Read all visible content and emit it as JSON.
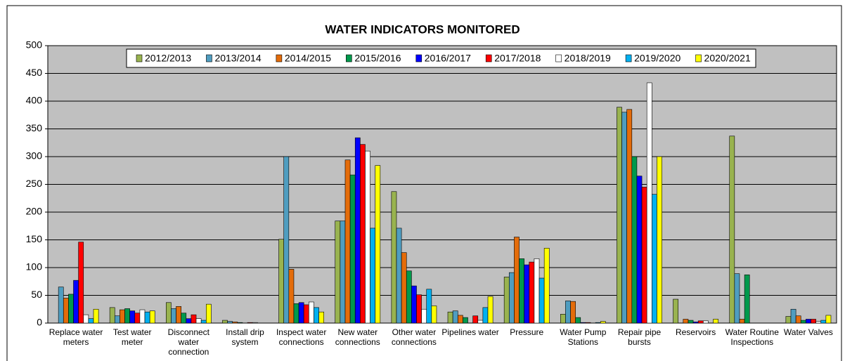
{
  "chart_data": {
    "type": "bar",
    "title": "WATER INDICATORS MONITORED",
    "categories": [
      "Replace water meters",
      "Test water meter",
      "Disconnect water connection",
      "Install drip system",
      "Inspect water connections",
      "New water connections",
      "Other water connections",
      "Pipelines water",
      "Pressure",
      "Water Pump Stations",
      "Repair pipe bursts",
      "Reservoirs",
      "Water Routine Inspections",
      "Water Valves"
    ],
    "series": [
      {
        "name": "2012/2013",
        "color": "#99b34f",
        "values": [
          0,
          28,
          37,
          5,
          151,
          184,
          237,
          20,
          83,
          16,
          389,
          43,
          337,
          12
        ]
      },
      {
        "name": "2013/2014",
        "color": "#4f9dc0",
        "values": [
          65,
          13,
          26,
          3,
          300,
          184,
          171,
          22,
          91,
          40,
          380,
          0,
          89,
          25
        ]
      },
      {
        "name": "2014/2015",
        "color": "#e46c0a",
        "values": [
          45,
          24,
          30,
          2,
          97,
          294,
          127,
          14,
          155,
          39,
          385,
          7,
          7,
          13
        ]
      },
      {
        "name": "2015/2016",
        "color": "#00994c",
        "values": [
          52,
          26,
          18,
          1,
          35,
          267,
          94,
          10,
          116,
          10,
          300,
          5,
          87,
          5
        ]
      },
      {
        "name": "2016/2017",
        "color": "#0000ff",
        "values": [
          77,
          22,
          8,
          0,
          37,
          334,
          67,
          0,
          105,
          1,
          265,
          2,
          0,
          7
        ]
      },
      {
        "name": "2017/2018",
        "color": "#ff0000",
        "values": [
          146,
          18,
          15,
          1,
          33,
          322,
          51,
          13,
          110,
          1,
          245,
          4,
          0,
          7
        ]
      },
      {
        "name": "2018/2019",
        "color": "#ffffff",
        "values": [
          15,
          24,
          8,
          1,
          38,
          310,
          25,
          5,
          116,
          0,
          433,
          4,
          0,
          3
        ]
      },
      {
        "name": "2019/2020",
        "color": "#00b0f0",
        "values": [
          8,
          20,
          5,
          0,
          28,
          171,
          61,
          28,
          81,
          1,
          232,
          0,
          0,
          5
        ]
      },
      {
        "name": "2020/2021",
        "color": "#ffff00",
        "values": [
          25,
          22,
          34,
          0,
          20,
          284,
          31,
          48,
          135,
          3,
          300,
          7,
          0,
          14
        ]
      }
    ],
    "ylim": [
      0,
      500
    ],
    "yticks": [
      0,
      50,
      100,
      150,
      200,
      250,
      300,
      350,
      400,
      450,
      500
    ],
    "grid": true,
    "legend": "top"
  }
}
